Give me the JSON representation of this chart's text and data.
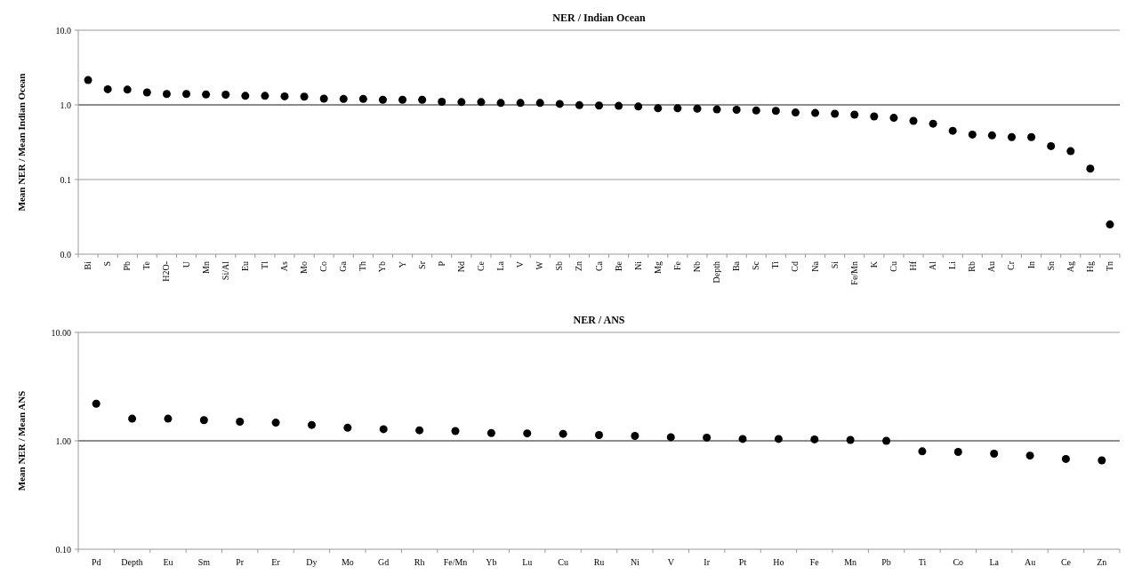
{
  "chart_data": [
    {
      "type": "scatter",
      "title": "NER / Indian Ocean",
      "ylabel": "Mean NER / Mean Indian Ocean",
      "log": "y",
      "marker": "circle",
      "categories": [
        "Bi",
        "S",
        "Pb",
        "Te",
        "H2O-",
        "U",
        "Mn",
        "Si/Al",
        "Eu",
        "Tl",
        "As",
        "Mo",
        "Co",
        "Ga",
        "Th",
        "Yb",
        "Y",
        "Sr",
        "P",
        "Nd",
        "Ce",
        "La",
        "V",
        "W",
        "Sb",
        "Zn",
        "Ca",
        "Be",
        "Ni",
        "Mg",
        "Fe",
        "Nb",
        "Depth",
        "Ba",
        "Sc",
        "Ti",
        "Cd",
        "Na",
        "Si",
        "Fe/Mn",
        "K",
        "Cu",
        "Hf",
        "Al",
        "Li",
        "Rb",
        "Au",
        "Cr",
        "In",
        "Sn",
        "Ag",
        "Hg",
        "Tn"
      ],
      "series": [
        {
          "color": "#000000",
          "values": [
            2.15,
            1.62,
            1.6,
            1.47,
            1.4,
            1.4,
            1.38,
            1.37,
            1.32,
            1.32,
            1.3,
            1.29,
            1.21,
            1.2,
            1.2,
            1.17,
            1.17,
            1.17,
            1.1,
            1.09,
            1.09,
            1.06,
            1.06,
            1.06,
            1.03,
            0.99,
            0.98,
            0.97,
            0.95,
            0.9,
            0.9,
            0.89,
            0.87,
            0.86,
            0.84,
            0.83,
            0.79,
            0.78,
            0.76,
            0.74,
            0.7,
            0.67,
            0.61,
            0.56,
            0.45,
            0.4,
            0.39,
            0.37,
            0.37,
            0.28,
            0.24,
            0.14,
            0.025
          ]
        }
      ],
      "ylim": [
        0.01,
        10
      ],
      "yticks": [
        {
          "value": 10,
          "label": "10.0"
        },
        {
          "value": 1,
          "label": "1.0"
        },
        {
          "value": 0.1,
          "label": "0.1"
        },
        {
          "value": 0.01,
          "label": "0.0"
        }
      ],
      "ref_lines": [
        {
          "axis": "y",
          "value": 10,
          "color": "#bbbbbb"
        },
        {
          "axis": "y",
          "value": 1,
          "color": "#666666"
        },
        {
          "axis": "y",
          "value": 0.1,
          "color": "#bbbbbb"
        }
      ]
    },
    {
      "type": "scatter",
      "title": "NER / ANS",
      "ylabel": "Mean NER / Mean ANS",
      "log": "y",
      "marker": "circle",
      "categories": [
        "Pd",
        "Depth",
        "Eu",
        "Sm",
        "Pr",
        "Er",
        "Dy",
        "Mo",
        "Gd",
        "Rh",
        "Fe/Mn",
        "Yb",
        "Lu",
        "Cu",
        "Ru",
        "Ni",
        "V",
        "Ir",
        "Pt",
        "Ho",
        "Fe",
        "Mn",
        "Pb",
        "Ti",
        "Co",
        "La",
        "Au",
        "Ce",
        "Zn"
      ],
      "series": [
        {
          "color": "#000000",
          "values": [
            2.2,
            1.6,
            1.6,
            1.55,
            1.5,
            1.47,
            1.4,
            1.32,
            1.28,
            1.25,
            1.23,
            1.18,
            1.17,
            1.16,
            1.13,
            1.11,
            1.08,
            1.07,
            1.04,
            1.04,
            1.03,
            1.02,
            1.0,
            0.8,
            0.79,
            0.76,
            0.73,
            0.68,
            0.66
          ]
        }
      ],
      "ylim": [
        0.1,
        10
      ],
      "yticks": [
        {
          "value": 10,
          "label": "10.00"
        },
        {
          "value": 1,
          "label": "1.00"
        },
        {
          "value": 0.1,
          "label": "0.10"
        }
      ],
      "ref_lines": [
        {
          "axis": "y",
          "value": 10,
          "color": "#bbbbbb"
        },
        {
          "axis": "y",
          "value": 1,
          "color": "#666666"
        }
      ]
    }
  ]
}
